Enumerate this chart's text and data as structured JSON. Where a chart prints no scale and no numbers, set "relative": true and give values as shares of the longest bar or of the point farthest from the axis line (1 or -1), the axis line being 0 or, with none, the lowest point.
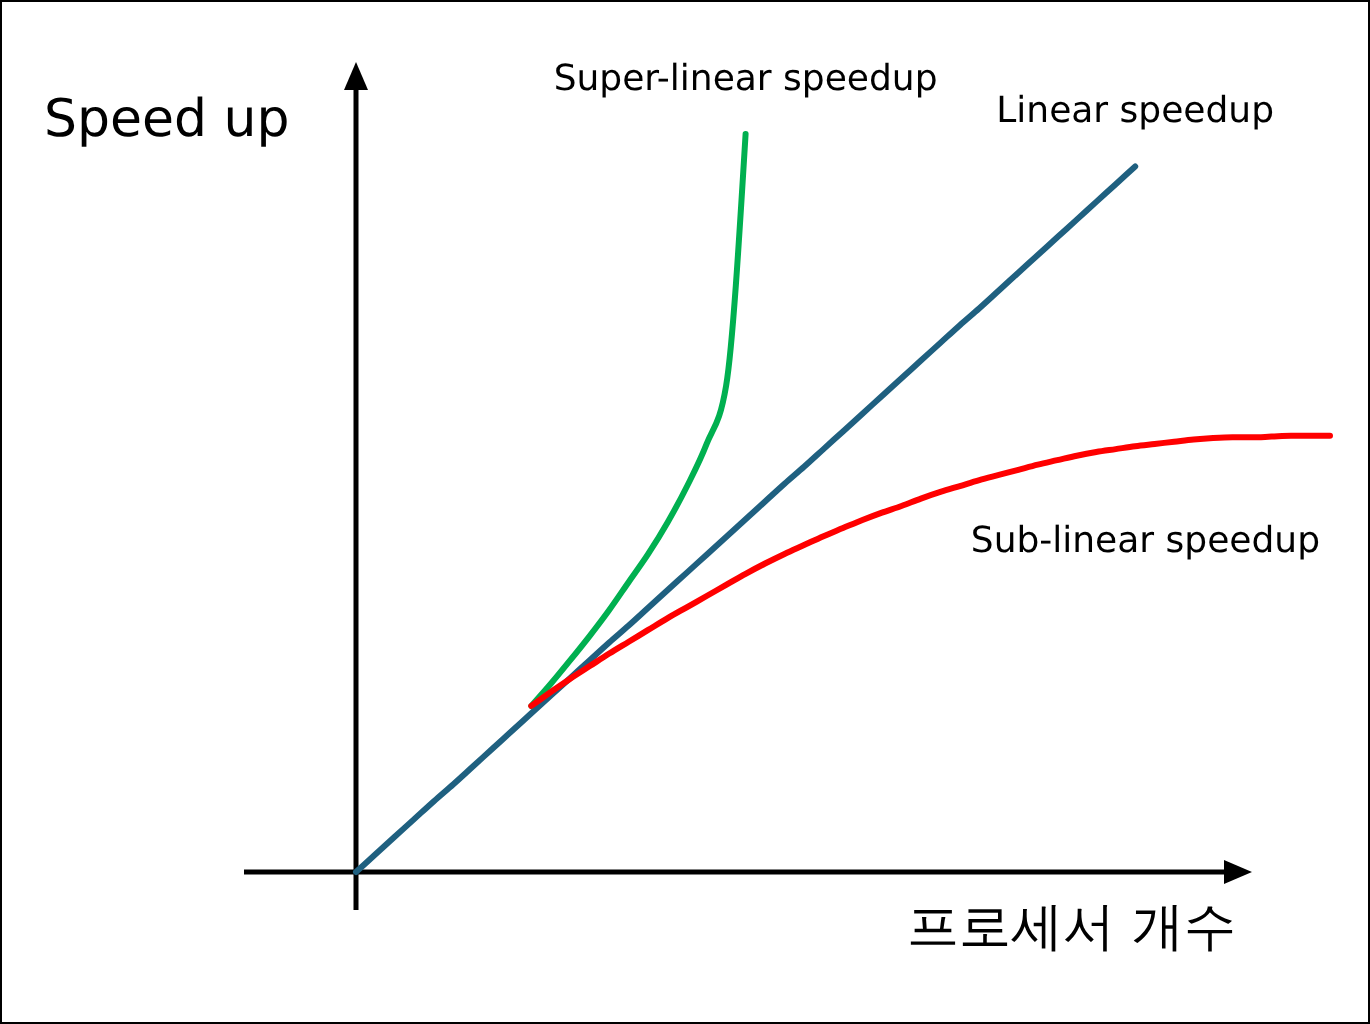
{
  "chart_data": {
    "type": "line",
    "relative": true,
    "xlabel": "프로세서 개수",
    "ylabel": "Speed up",
    "categories": [
      null,
      null,
      null,
      null,
      null,
      null,
      null,
      null,
      null,
      null,
      null,
      null,
      null,
      null,
      null,
      null,
      null,
      null,
      null,
      null,
      null,
      null,
      null,
      null,
      null,
      null,
      null,
      null,
      null,
      null,
      null,
      null,
      null,
      null,
      null,
      null,
      null,
      null,
      null,
      null,
      null,
      null,
      null,
      null,
      null,
      null,
      null,
      null,
      null,
      null,
      null
    ],
    "series": [
      {
        "name": "Linear speedup",
        "color": "#1f6080",
        "values": [
          0,
          0.024,
          0.048,
          0.072,
          0.096,
          0.119,
          0.143,
          0.167,
          0.191,
          0.215,
          0.239,
          0.263,
          0.287,
          0.311,
          0.334,
          0.358,
          0.382,
          0.406,
          0.43,
          0.454,
          0.478,
          0.502,
          0.526,
          0.549,
          0.573,
          0.597,
          0.621,
          0.645,
          0.669,
          0.693,
          0.717,
          0.741,
          0.764,
          0.788,
          0.812,
          0.836,
          0.86,
          0.884,
          0.908,
          0.932,
          0.956,
          null,
          null,
          null,
          null,
          null,
          null,
          null,
          null,
          null,
          null
        ]
      },
      {
        "name": "Super-linear speedup",
        "color": "#00b050",
        "values": [
          null,
          null,
          null,
          null,
          null,
          null,
          null,
          null,
          null,
          0.225,
          0.255,
          0.287,
          0.32,
          0.355,
          0.393,
          0.431,
          0.474,
          0.523,
          0.58,
          0.659,
          1,
          null,
          null,
          null,
          null,
          null,
          null,
          null,
          null,
          null,
          null,
          null,
          null,
          null,
          null,
          null,
          null,
          null,
          null,
          null,
          null,
          null,
          null,
          null,
          null,
          null,
          null,
          null,
          null,
          null,
          null
        ]
      },
      {
        "name": "Sub-linear speedup",
        "color": "#ff0000",
        "values": [
          null,
          null,
          null,
          null,
          null,
          null,
          null,
          null,
          null,
          0.225,
          0.244,
          0.262,
          0.279,
          0.296,
          0.312,
          0.328,
          0.344,
          0.359,
          0.374,
          0.389,
          0.404,
          0.418,
          0.431,
          0.443,
          0.455,
          0.466,
          0.477,
          0.487,
          0.496,
          0.506,
          0.515,
          0.523,
          0.531,
          0.538,
          0.545,
          0.552,
          0.558,
          0.564,
          0.569,
          0.573,
          0.577,
          0.58,
          0.583,
          0.586,
          0.588,
          0.589,
          0.589,
          0.59,
          0.591,
          0.591,
          0.591
        ]
      }
    ]
  }
}
